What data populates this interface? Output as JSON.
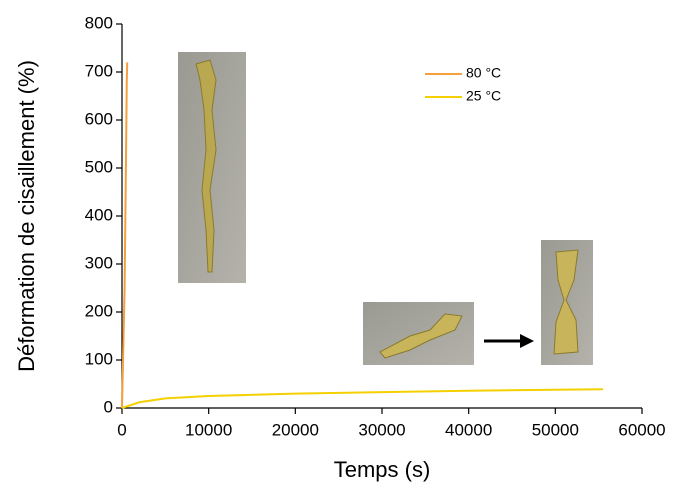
{
  "chart_data": {
    "type": "line",
    "x_label": "Temps (s)",
    "y_label": "Déformation de cisaillement (%)",
    "xlim": [
      0,
      60000
    ],
    "xticks": [
      0,
      10000,
      20000,
      30000,
      40000,
      50000,
      60000
    ],
    "ylim": [
      0,
      800
    ],
    "yticks": [
      0,
      100,
      200,
      300,
      400,
      500,
      600,
      700,
      800
    ],
    "series": [
      {
        "name": "80 °C",
        "color": "#f5a03c",
        "x": [
          0,
          300,
          450,
          550,
          600
        ],
        "values": [
          0,
          250,
          500,
          680,
          720
        ]
      },
      {
        "name": "25 °C",
        "color": "#f5d000",
        "x": [
          0,
          1000,
          2000,
          5000,
          10000,
          20000,
          30000,
          40000,
          50000,
          55500
        ],
        "values": [
          0,
          6,
          12,
          20,
          25,
          30,
          33,
          36,
          38,
          39
        ]
      }
    ]
  }
}
